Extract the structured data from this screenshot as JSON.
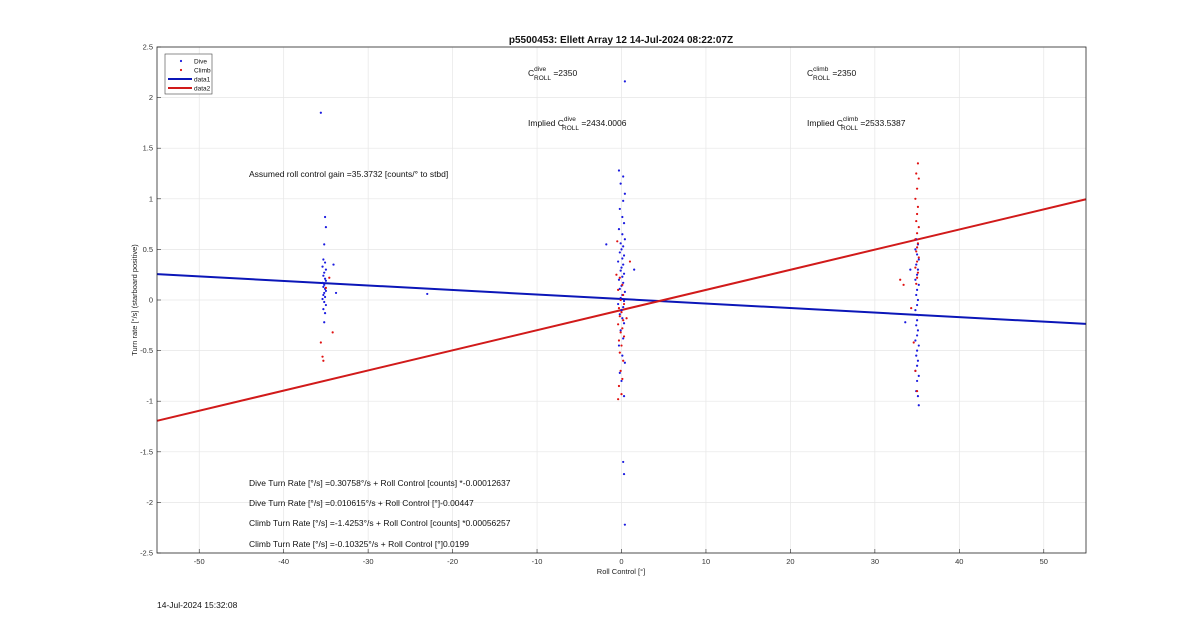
{
  "chart_data": {
    "type": "scatter",
    "title": "p5500453: Ellett Array 12 14-Jul-2024 08:22:07Z",
    "xlabel": "Roll Control [°]",
    "ylabel": "Turn rate [°/s] (starboard positive)",
    "xlim": [
      -55,
      55
    ],
    "ylim": [
      -2.5,
      2.5
    ],
    "xticks": [
      -50,
      -40,
      -30,
      -20,
      -10,
      0,
      10,
      20,
      30,
      40,
      50
    ],
    "yticks": [
      -2.5,
      -2,
      -1.5,
      -1,
      -0.5,
      0,
      0.5,
      1,
      1.5,
      2,
      2.5
    ],
    "grid": true,
    "legend_position": "top-left",
    "series": [
      {
        "name": "Dive",
        "kind": "points",
        "color": "#1a1adf",
        "points": [
          [
            -35.1,
            0.82
          ],
          [
            -35.0,
            0.72
          ],
          [
            -35.2,
            0.55
          ],
          [
            -35.3,
            0.4
          ],
          [
            -35.1,
            0.37
          ],
          [
            -35.4,
            0.33
          ],
          [
            -35.0,
            0.3
          ],
          [
            -35.2,
            0.27
          ],
          [
            -35.3,
            0.24
          ],
          [
            -35.1,
            0.21
          ],
          [
            -35.0,
            0.19
          ],
          [
            -35.4,
            0.17
          ],
          [
            -35.2,
            0.15
          ],
          [
            -35.3,
            0.13
          ],
          [
            -35.1,
            0.11
          ],
          [
            -35.0,
            0.09
          ],
          [
            -35.2,
            0.07
          ],
          [
            -35.3,
            0.05
          ],
          [
            -35.1,
            0.03
          ],
          [
            -35.4,
            0.01
          ],
          [
            -35.2,
            -0.02
          ],
          [
            -35.0,
            -0.05
          ],
          [
            -35.3,
            -0.09
          ],
          [
            -35.1,
            -0.13
          ],
          [
            -35.2,
            -0.22
          ],
          [
            -34.1,
            0.35
          ],
          [
            -33.8,
            0.07
          ],
          [
            -35.6,
            1.85
          ],
          [
            -23.0,
            0.06
          ],
          [
            -0.3,
            1.28
          ],
          [
            0.2,
            1.22
          ],
          [
            -0.1,
            1.15
          ],
          [
            0.4,
            1.05
          ],
          [
            0.2,
            0.98
          ],
          [
            -0.2,
            0.9
          ],
          [
            0.1,
            0.82
          ],
          [
            0.3,
            0.76
          ],
          [
            -0.3,
            0.7
          ],
          [
            0.1,
            0.65
          ],
          [
            0.4,
            0.6
          ],
          [
            -0.1,
            0.56
          ],
          [
            0.2,
            0.53
          ],
          [
            0.0,
            0.5
          ],
          [
            -0.2,
            0.47
          ],
          [
            0.3,
            0.44
          ],
          [
            0.1,
            0.41
          ],
          [
            -0.4,
            0.38
          ],
          [
            0.2,
            0.35
          ],
          [
            0.0,
            0.32
          ],
          [
            -0.1,
            0.29
          ],
          [
            0.3,
            0.26
          ],
          [
            0.1,
            0.23
          ],
          [
            -0.3,
            0.2
          ],
          [
            0.2,
            0.17
          ],
          [
            0.0,
            0.14
          ],
          [
            -0.2,
            0.11
          ],
          [
            0.4,
            0.08
          ],
          [
            0.1,
            0.05
          ],
          [
            -0.1,
            0.02
          ],
          [
            0.3,
            -0.01
          ],
          [
            -0.4,
            -0.04
          ],
          [
            0.2,
            -0.07
          ],
          [
            0.0,
            -0.1
          ],
          [
            -0.2,
            -0.14
          ],
          [
            0.1,
            -0.18
          ],
          [
            0.3,
            -0.23
          ],
          [
            -0.1,
            -0.3
          ],
          [
            0.2,
            -0.38
          ],
          [
            -0.3,
            -0.45
          ],
          [
            0.1,
            -0.55
          ],
          [
            0.4,
            -0.62
          ],
          [
            -0.2,
            -0.72
          ],
          [
            0.0,
            -0.8
          ],
          [
            0.3,
            -0.95
          ],
          [
            0.2,
            -1.6
          ],
          [
            0.3,
            -1.72
          ],
          [
            0.4,
            -2.22
          ],
          [
            0.4,
            2.16
          ],
          [
            -1.8,
            0.55
          ],
          [
            1.5,
            0.3
          ],
          [
            34.9,
            0.6
          ],
          [
            35.1,
            0.55
          ],
          [
            34.8,
            0.5
          ],
          [
            35.0,
            0.45
          ],
          [
            35.2,
            0.4
          ],
          [
            34.9,
            0.35
          ],
          [
            35.1,
            0.3
          ],
          [
            35.0,
            0.25
          ],
          [
            34.8,
            0.2
          ],
          [
            35.2,
            0.15
          ],
          [
            35.0,
            0.1
          ],
          [
            34.9,
            0.05
          ],
          [
            35.1,
            0.0
          ],
          [
            35.0,
            -0.05
          ],
          [
            34.8,
            -0.1
          ],
          [
            35.2,
            -0.15
          ],
          [
            35.0,
            -0.2
          ],
          [
            34.9,
            -0.25
          ],
          [
            35.1,
            -0.3
          ],
          [
            35.0,
            -0.35
          ],
          [
            34.8,
            -0.4
          ],
          [
            35.2,
            -0.45
          ],
          [
            35.0,
            -0.5
          ],
          [
            34.9,
            -0.55
          ],
          [
            35.1,
            -0.6
          ],
          [
            35.0,
            -0.65
          ],
          [
            34.8,
            -0.7
          ],
          [
            35.2,
            -0.75
          ],
          [
            35.0,
            -0.8
          ],
          [
            34.9,
            -0.9
          ],
          [
            35.1,
            -0.95
          ],
          [
            35.2,
            -1.04
          ],
          [
            33.6,
            -0.22
          ],
          [
            34.2,
            0.3
          ]
        ]
      },
      {
        "name": "Climb",
        "kind": "points",
        "color": "#e01010",
        "points": [
          [
            -35.4,
            -0.56
          ],
          [
            -35.3,
            -0.6
          ],
          [
            -35.6,
            -0.42
          ],
          [
            -34.2,
            -0.32
          ],
          [
            -34.6,
            0.22
          ],
          [
            -35.0,
            0.12
          ],
          [
            -0.2,
            0.22
          ],
          [
            0.1,
            0.15
          ],
          [
            -0.4,
            0.1
          ],
          [
            0.2,
            0.05
          ],
          [
            -0.1,
            0.0
          ],
          [
            0.3,
            -0.04
          ],
          [
            -0.3,
            -0.08
          ],
          [
            0.0,
            -0.12
          ],
          [
            -0.2,
            -0.16
          ],
          [
            0.2,
            -0.2
          ],
          [
            -0.4,
            -0.24
          ],
          [
            0.1,
            -0.28
          ],
          [
            -0.1,
            -0.32
          ],
          [
            0.3,
            -0.36
          ],
          [
            -0.3,
            -0.4
          ],
          [
            0.0,
            -0.45
          ],
          [
            -0.2,
            -0.52
          ],
          [
            0.2,
            -0.6
          ],
          [
            -0.1,
            -0.7
          ],
          [
            0.1,
            -0.78
          ],
          [
            -0.3,
            -0.85
          ],
          [
            0.0,
            -0.93
          ],
          [
            -0.4,
            -0.98
          ],
          [
            -0.5,
            0.58
          ],
          [
            1.0,
            0.38
          ],
          [
            -0.6,
            0.25
          ],
          [
            0.6,
            -0.18
          ],
          [
            35.1,
            1.35
          ],
          [
            34.9,
            1.25
          ],
          [
            35.2,
            1.2
          ],
          [
            35.0,
            1.1
          ],
          [
            34.8,
            1.0
          ],
          [
            35.1,
            0.92
          ],
          [
            35.0,
            0.85
          ],
          [
            34.9,
            0.78
          ],
          [
            35.2,
            0.72
          ],
          [
            35.0,
            0.66
          ],
          [
            34.8,
            0.6
          ],
          [
            35.1,
            0.56
          ],
          [
            35.0,
            0.52
          ],
          [
            34.9,
            0.48
          ],
          [
            35.2,
            0.42
          ],
          [
            35.0,
            0.38
          ],
          [
            34.8,
            0.32
          ],
          [
            35.1,
            0.27
          ],
          [
            35.0,
            0.22
          ],
          [
            34.9,
            0.16
          ],
          [
            33.0,
            0.2
          ],
          [
            33.4,
            0.15
          ],
          [
            34.3,
            -0.08
          ],
          [
            34.6,
            -0.42
          ],
          [
            34.8,
            -0.7
          ],
          [
            35.0,
            -0.9
          ]
        ]
      },
      {
        "name": "data1",
        "kind": "line",
        "color": "#0b16b8",
        "points": [
          [
            -55,
            0.2555
          ],
          [
            55,
            -0.2362
          ]
        ]
      },
      {
        "name": "data2",
        "kind": "line",
        "color": "#d11a1a",
        "points": [
          [
            -55,
            -1.1937
          ],
          [
            55,
            0.9953
          ]
        ]
      }
    ],
    "annotations": {
      "c_dive": {
        "base": "C",
        "sup": "dive",
        "sub": "ROLL",
        "value": " =2350"
      },
      "c_climb": {
        "base": "C",
        "sup": "climb",
        "sub": "ROLL",
        "value": " =2350"
      },
      "implied_dive": {
        "base": "Implied C",
        "sup": "dive",
        "sub": "ROLL",
        "value": " =2434.0006"
      },
      "implied_climb": {
        "base": "Implied C",
        "sup": "climb",
        "sub": "ROLL",
        "value": " =2533.5387"
      },
      "gain": "Assumed roll control gain =35.3732 [counts/° to stbd]",
      "equations": [
        "Dive Turn Rate [°/s] =0.30758°/s + Roll Control [counts] *-0.00012637",
        "Dive Turn Rate [°/s] =0.010615°/s + Roll Control [°]-0.00447",
        "Climb Turn Rate [°/s] =-1.4253°/s + Roll Control [counts] *0.00056257",
        "Climb Turn Rate [°/s] =-0.10325°/s + Roll Control [°]0.0199"
      ]
    }
  },
  "footer": {
    "timestamp": "14-Jul-2024 15:32:08"
  }
}
